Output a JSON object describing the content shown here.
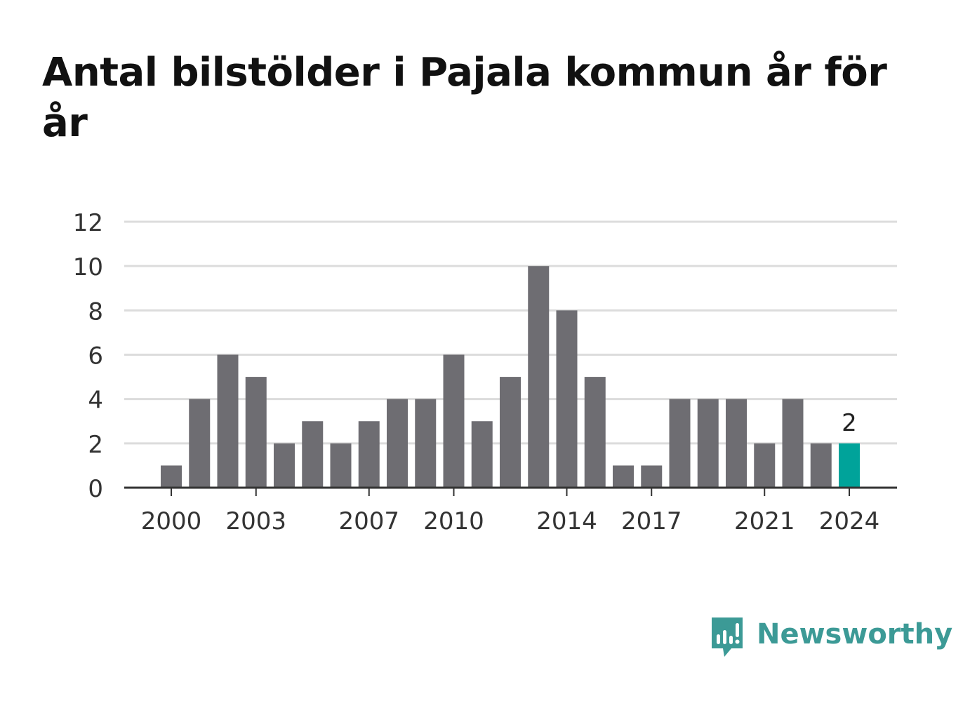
{
  "title": "Antal bilstölder i Pajala kommun år för år",
  "brand": {
    "name": "Newsworthy",
    "icon": "newsworthy-logo-icon",
    "color": "#3c9a96"
  },
  "chart_data": {
    "type": "bar",
    "title": "Antal bilstölder i Pajala kommun år för år",
    "xlabel": "",
    "ylabel": "",
    "categories": [
      2000,
      2001,
      2002,
      2003,
      2004,
      2005,
      2006,
      2007,
      2008,
      2009,
      2010,
      2011,
      2012,
      2013,
      2014,
      2015,
      2016,
      2017,
      2018,
      2019,
      2020,
      2021,
      2022,
      2023,
      2024
    ],
    "values": [
      1,
      4,
      6,
      5,
      2,
      3,
      2,
      3,
      4,
      4,
      6,
      3,
      5,
      10,
      8,
      5,
      1,
      1,
      4,
      4,
      4,
      2,
      4,
      2,
      2
    ],
    "x_tick_labels": [
      "2000",
      "2003",
      "2007",
      "2010",
      "2014",
      "2017",
      "2021",
      "2024"
    ],
    "y_ticks": [
      0,
      2,
      4,
      6,
      8,
      10,
      12
    ],
    "ylim": [
      0,
      12
    ],
    "grid": "horizontal",
    "highlight": {
      "category": 2024,
      "label": "2"
    },
    "colors": {
      "bar": "#6e6d72",
      "highlight": "#00a39a",
      "grid": "#dcdcdc",
      "axis": "#333333"
    }
  }
}
